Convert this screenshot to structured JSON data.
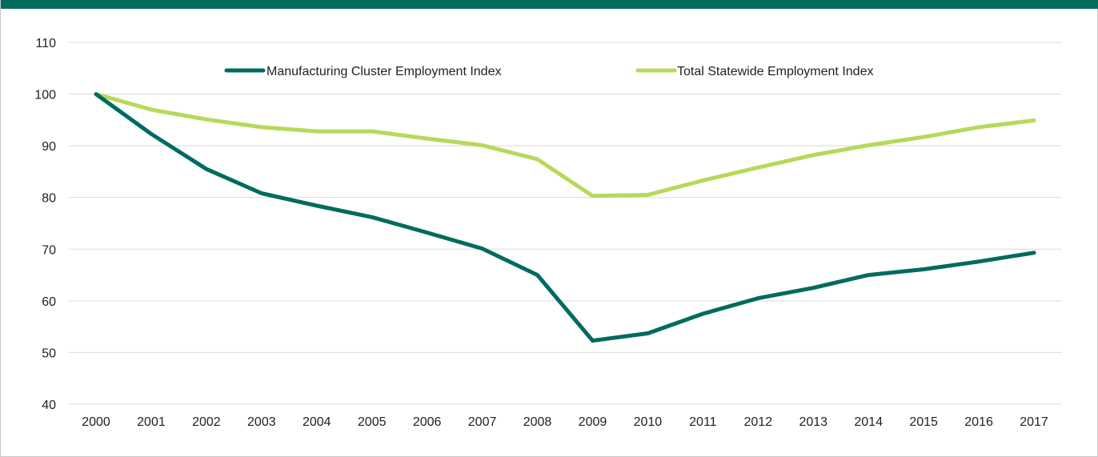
{
  "colors": {
    "header_bar": "#006b5f",
    "grid": "#d9d9d9",
    "text": "#222222"
  },
  "chart_data": {
    "type": "line",
    "title": "",
    "xlabel": "",
    "ylabel": "",
    "categories": [
      "2000",
      "2001",
      "2002",
      "2003",
      "2004",
      "2005",
      "2006",
      "2007",
      "2008",
      "2009",
      "2010",
      "2011",
      "2012",
      "2013",
      "2014",
      "2015",
      "2016",
      "2017"
    ],
    "ylim": [
      40,
      110
    ],
    "yticks": [
      40,
      50,
      60,
      70,
      80,
      90,
      100,
      110
    ],
    "grid": true,
    "legend_position": "top-center",
    "series": [
      {
        "name": "Manufacturing Cluster Employment Index",
        "color": "#006b5f",
        "values": [
          100,
          92.3,
          85.5,
          80.8,
          78.4,
          76.2,
          73.2,
          70.1,
          65.0,
          52.3,
          53.7,
          57.5,
          60.5,
          62.5,
          65.0,
          66.1,
          67.6,
          69.3
        ]
      },
      {
        "name": "Total Statewide Employment Index",
        "color": "#b8d85a",
        "values": [
          100,
          97.0,
          95.1,
          93.6,
          92.8,
          92.8,
          91.4,
          90.1,
          87.4,
          80.3,
          80.5,
          83.3,
          85.8,
          88.2,
          90.1,
          91.7,
          93.6,
          94.9
        ]
      }
    ]
  }
}
